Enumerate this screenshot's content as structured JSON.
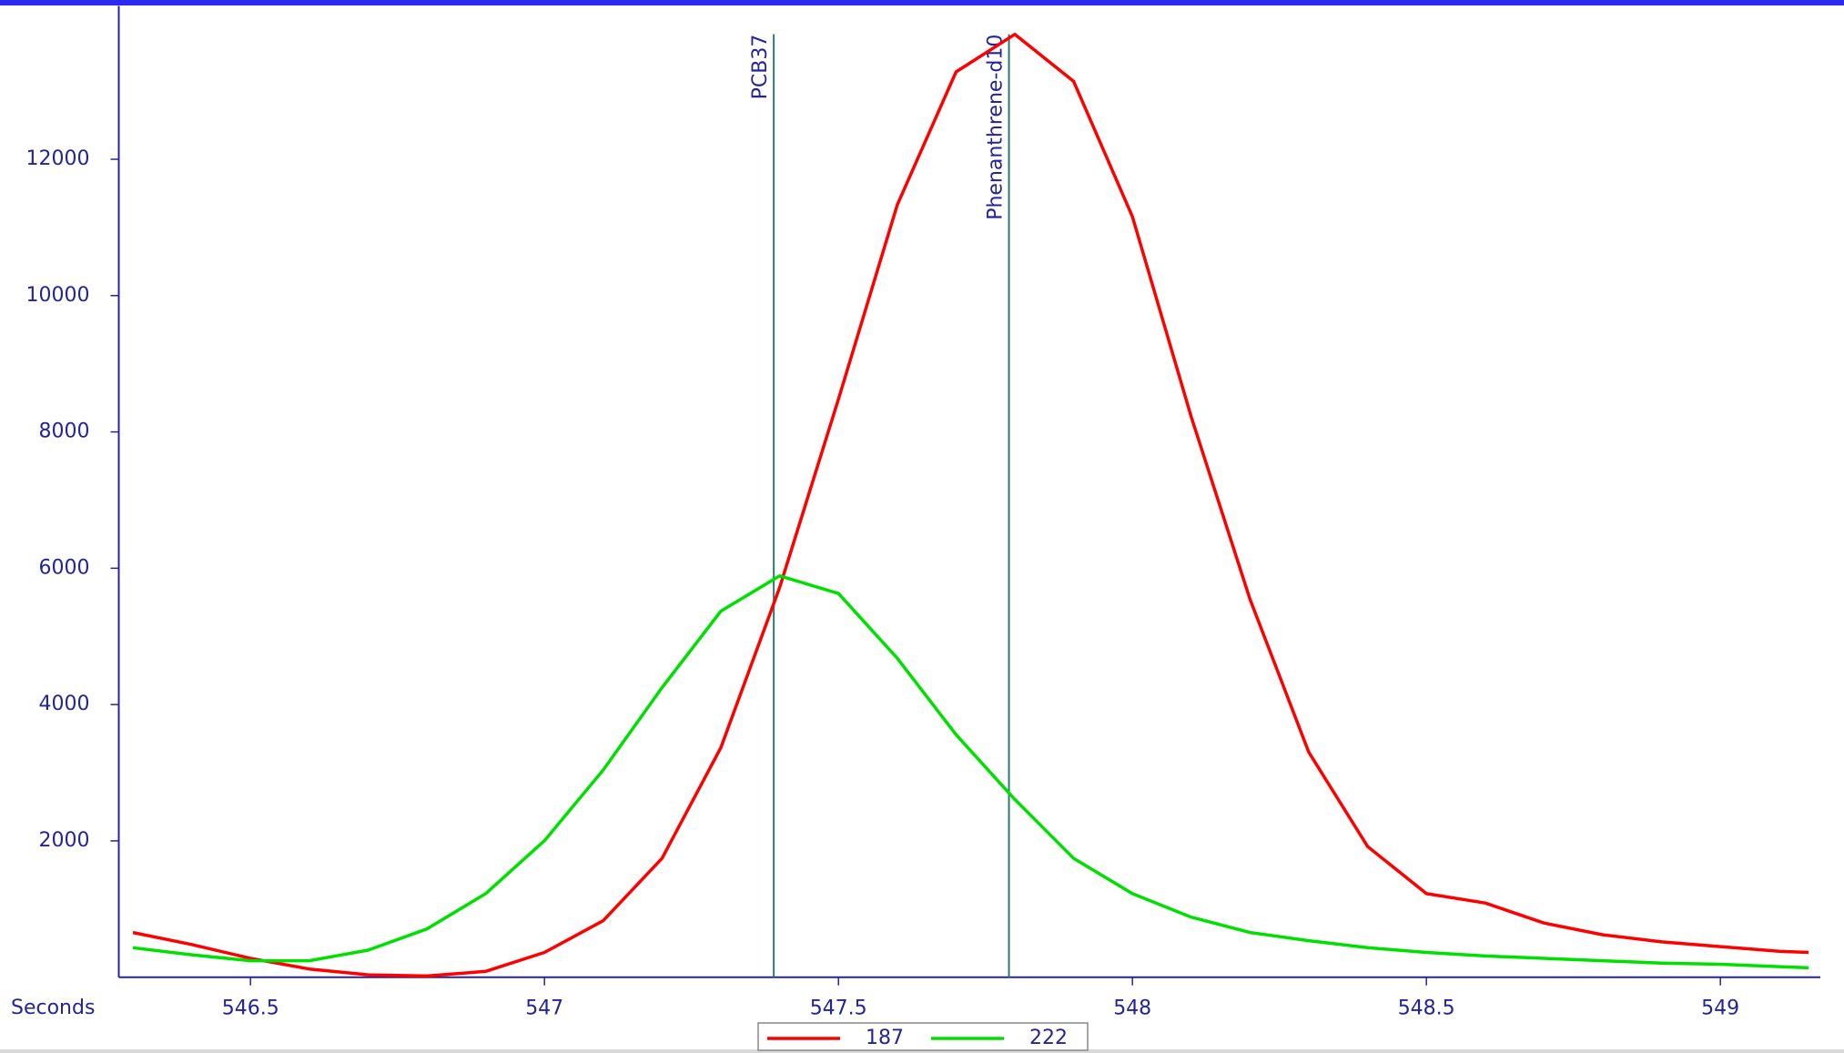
{
  "chart_data": {
    "type": "line",
    "x_label": "Seconds",
    "x": [
      546.3,
      546.4,
      546.5,
      546.6,
      546.7,
      546.8,
      546.9,
      547.0,
      547.1,
      547.2,
      547.3,
      547.4,
      547.5,
      547.6,
      547.7,
      547.8,
      547.9,
      548.0,
      548.1,
      548.2,
      548.3,
      548.4,
      548.5,
      548.6,
      548.7,
      548.8,
      548.9,
      549.0,
      549.1,
      549.15
    ],
    "series": [
      {
        "name": "187",
        "color": "#ff0000",
        "values": [
          656,
          480,
          276,
          120,
          35,
          17,
          86,
          363,
          829,
          1744,
          3368,
          5717,
          8480,
          11330,
          13282,
          13834,
          13143,
          11157,
          8221,
          5544,
          3299,
          1917,
          1226,
          1088,
          794,
          622,
          518,
          449,
          380,
          363
        ]
      },
      {
        "name": "222",
        "color": "#00e000",
        "values": [
          432,
          328,
          242,
          242,
          397,
          708,
          1226,
          2003,
          3040,
          4249,
          5371,
          5889,
          5630,
          4680,
          3558,
          2608,
          1744,
          1226,
          881,
          656,
          535,
          432,
          363,
          311,
          276,
          242,
          207,
          190,
          155,
          138
        ]
      }
    ],
    "markers": [
      {
        "label": "PCB37",
        "x": 547.39
      },
      {
        "label": "Phenanthrene-d10",
        "x": 547.79
      }
    ],
    "xlim": [
      546.276,
      549.17
    ],
    "ylim": [
      0,
      14250
    ],
    "xticks": [
      546.5,
      547,
      547.5,
      548,
      548.5,
      549
    ],
    "yticks": [
      2000,
      4000,
      6000,
      8000,
      10000,
      12000
    ],
    "legend": "bottom"
  }
}
